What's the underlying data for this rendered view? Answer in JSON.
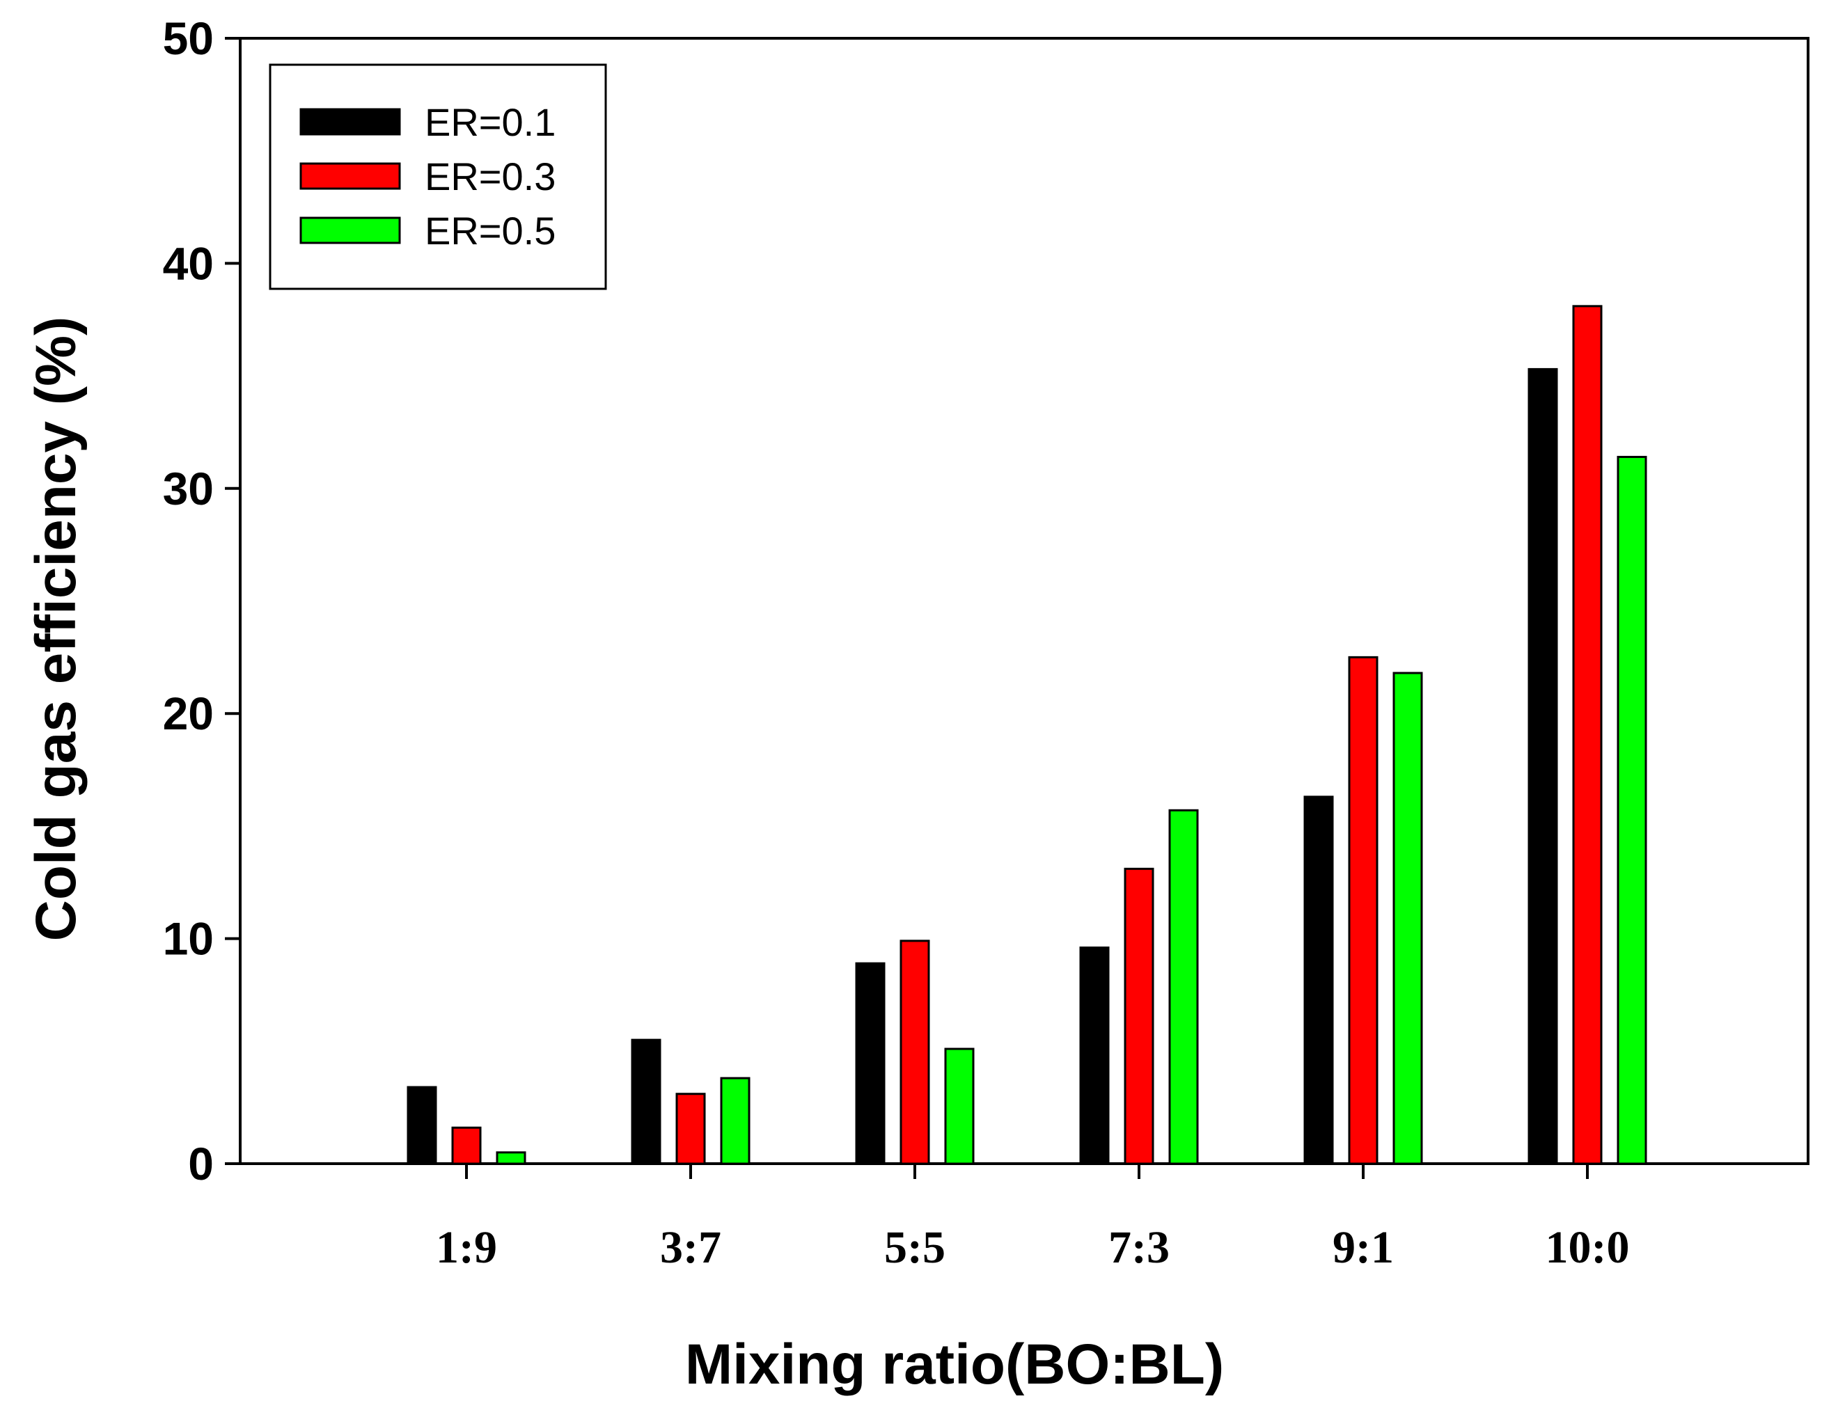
{
  "chart_data": {
    "type": "bar",
    "title": "",
    "xlabel": "Mixing ratio(BO:BL)",
    "ylabel": "Cold gas efficiency (%)",
    "ylim": [
      0,
      50
    ],
    "yticks": [
      0,
      10,
      20,
      30,
      40,
      50
    ],
    "categories": [
      "1:9",
      "3:7",
      "5:5",
      "7:3",
      "9:1",
      "10:0"
    ],
    "series": [
      {
        "name": "ER=0.1",
        "color": "#000000",
        "values": [
          3.4,
          5.5,
          8.9,
          9.6,
          16.3,
          35.3
        ]
      },
      {
        "name": "ER=0.3",
        "color": "#ff0000",
        "values": [
          1.6,
          3.1,
          9.9,
          13.1,
          22.5,
          38.1
        ]
      },
      {
        "name": "ER=0.5",
        "color": "#00ff00",
        "values": [
          0.5,
          3.8,
          5.1,
          15.7,
          21.8,
          31.4
        ]
      }
    ],
    "legend": {
      "placement": "top-left"
    },
    "grid": false
  }
}
